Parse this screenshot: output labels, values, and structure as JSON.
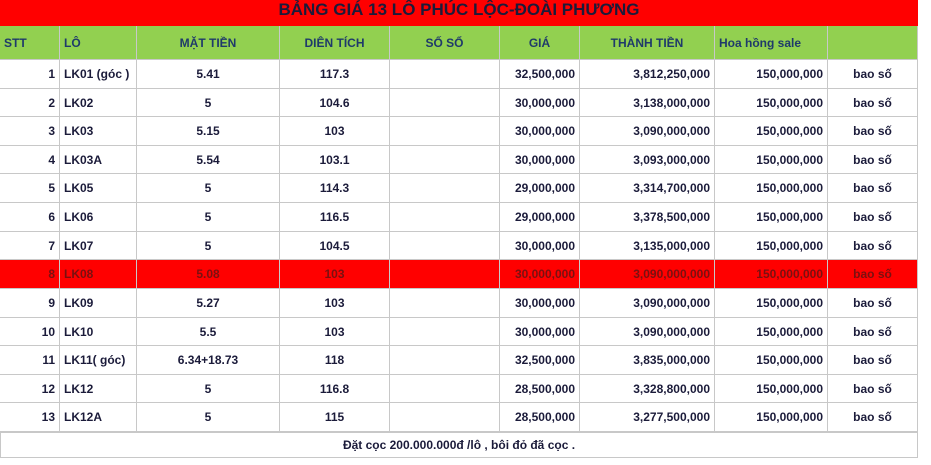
{
  "title": "BẢNG GIÁ 13 LÔ PHÚC LỘC-ĐOÀI PHƯƠNG",
  "header": {
    "stt": "STT",
    "lo": "LÔ",
    "mat_tien": "MẶT TIỀN",
    "dien_tich": "DIÊN TÍCH",
    "so_so": "SỐ SỔ",
    "gia": "GIÁ",
    "thanh_tien": "THÀNH TIỀN",
    "hoa_hong": "Hoa hồng sale"
  },
  "rows": [
    {
      "stt": "1",
      "lo": "LK01 (góc )",
      "mat_tien": "5.41",
      "dien_tich": "117.3",
      "gia": "32,500,000",
      "thanh_tien": "3,812,250,000",
      "hoa_hong": "150,000,000",
      "ghi_chu": "bao số"
    },
    {
      "stt": "2",
      "lo": "LK02",
      "mat_tien": "5",
      "dien_tich": "104.6",
      "gia": "30,000,000",
      "thanh_tien": "3,138,000,000",
      "hoa_hong": "150,000,000",
      "ghi_chu": "bao số"
    },
    {
      "stt": "3",
      "lo": "LK03",
      "mat_tien": "5.15",
      "dien_tich": "103",
      "gia": "30,000,000",
      "thanh_tien": "3,090,000,000",
      "hoa_hong": "150,000,000",
      "ghi_chu": "bao số"
    },
    {
      "stt": "4",
      "lo": "LK03A",
      "mat_tien": "5.54",
      "dien_tich": "103.1",
      "gia": "30,000,000",
      "thanh_tien": "3,093,000,000",
      "hoa_hong": "150,000,000",
      "ghi_chu": "bao số"
    },
    {
      "stt": "5",
      "lo": "LK05",
      "mat_tien": "5",
      "dien_tich": "114.3",
      "gia": "29,000,000",
      "thanh_tien": "3,314,700,000",
      "hoa_hong": "150,000,000",
      "ghi_chu": "bao số"
    },
    {
      "stt": "6",
      "lo": "LK06",
      "mat_tien": "5",
      "dien_tich": "116.5",
      "gia": "29,000,000",
      "thanh_tien": "3,378,500,000",
      "hoa_hong": "150,000,000",
      "ghi_chu": "bao số"
    },
    {
      "stt": "7",
      "lo": "LK07",
      "mat_tien": "5",
      "dien_tich": "104.5",
      "gia": "30,000,000",
      "thanh_tien": "3,135,000,000",
      "hoa_hong": "150,000,000",
      "ghi_chu": "bao số"
    },
    {
      "stt": "8",
      "lo": "LK08",
      "mat_tien": "5.08",
      "dien_tich": "103",
      "gia": "30,000,000",
      "thanh_tien": "3,090,000,000",
      "hoa_hong": "150,000,000",
      "ghi_chu": "bao số",
      "highlight": true
    },
    {
      "stt": "9",
      "lo": "LK09",
      "mat_tien": "5.27",
      "dien_tich": "103",
      "gia": "30,000,000",
      "thanh_tien": "3,090,000,000",
      "hoa_hong": "150,000,000",
      "ghi_chu": "bao số"
    },
    {
      "stt": "10",
      "lo": "LK10",
      "mat_tien": "5.5",
      "dien_tich": "103",
      "gia": "30,000,000",
      "thanh_tien": "3,090,000,000",
      "hoa_hong": "150,000,000",
      "ghi_chu": "bao số"
    },
    {
      "stt": "11",
      "lo": "LK11( góc)",
      "mat_tien": "6.34+18.73",
      "dien_tich": "118",
      "gia": "32,500,000",
      "thanh_tien": "3,835,000,000",
      "hoa_hong": "150,000,000",
      "ghi_chu": "bao số"
    },
    {
      "stt": "12",
      "lo": "LK12",
      "mat_tien": "5",
      "dien_tich": "116.8",
      "gia": "28,500,000",
      "thanh_tien": "3,328,800,000",
      "hoa_hong": "150,000,000",
      "ghi_chu": "bao số"
    },
    {
      "stt": "13",
      "lo": "LK12A",
      "mat_tien": "5",
      "dien_tich": "115",
      "gia": "28,500,000",
      "thanh_tien": "3,277,500,000",
      "hoa_hong": "150,000,000",
      "ghi_chu": "bao số"
    }
  ],
  "footer": "Đặt cọc 200.000.000đ /lô , bôi đỏ đã cọc ."
}
